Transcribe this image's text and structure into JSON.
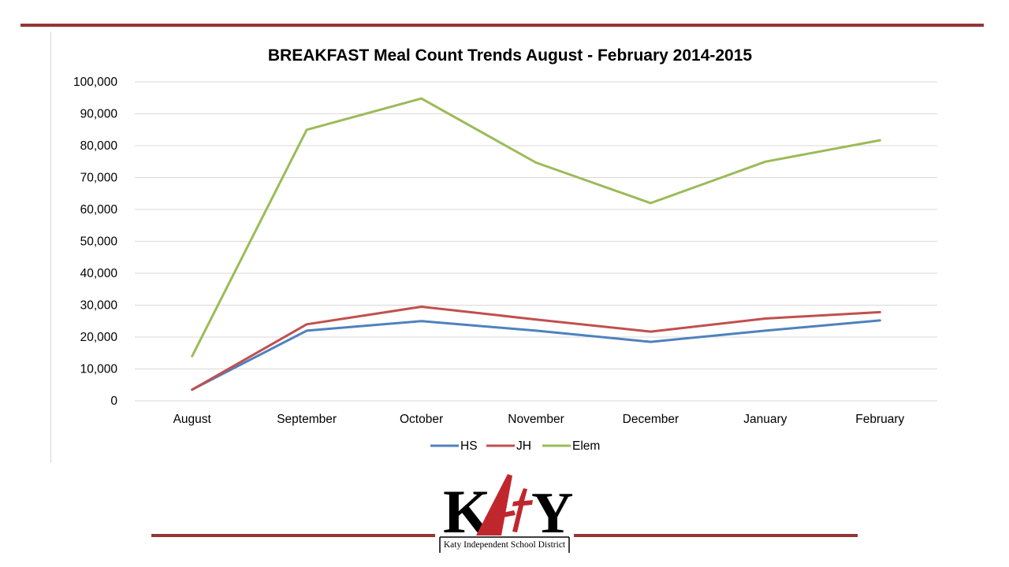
{
  "theme": {
    "rule_color": "#943634",
    "logo_red": "#c0272d",
    "logo_black": "#000000"
  },
  "logo": {
    "wordmark": "KATY",
    "caption": "Katy Independent School District"
  },
  "chart_data": {
    "type": "line",
    "title": "BREAKFAST Meal Count Trends August - February 2014-2015",
    "xlabel": "",
    "ylabel": "",
    "categories": [
      "August",
      "September",
      "October",
      "November",
      "December",
      "January",
      "February"
    ],
    "ylim": [
      0,
      100000
    ],
    "yticks": [
      "0",
      "10,000",
      "20,000",
      "30,000",
      "40,000",
      "50,000",
      "60,000",
      "70,000",
      "80,000",
      "90,000",
      "100,000"
    ],
    "grid": true,
    "legend_position": "bottom",
    "series": [
      {
        "name": "HS",
        "color": "#4f81bd",
        "values": [
          3500,
          22000,
          25000,
          22000,
          18500,
          22000,
          25200
        ]
      },
      {
        "name": "JH",
        "color": "#c0504d",
        "values": [
          3500,
          24000,
          29500,
          25500,
          21700,
          25800,
          27800
        ]
      },
      {
        "name": "Elem",
        "color": "#9bbb59",
        "values": [
          14000,
          85000,
          94800,
          74700,
          62000,
          75000,
          81700
        ]
      }
    ]
  }
}
